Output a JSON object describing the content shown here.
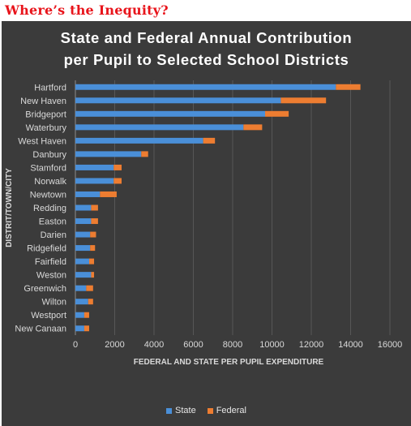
{
  "banner": {
    "text": "Where’s the Inequity?"
  },
  "chart_data": {
    "type": "bar",
    "orientation": "horizontal",
    "stacked": true,
    "title": [
      "State and Federal Annual Contribution",
      "per Pupil to Selected School Districts"
    ],
    "xlabel": "FEDERAL AND STATE PER PUPIL EXPENDITURE",
    "ylabel": "DISTRIT/TOWN/CITY",
    "xlim": [
      0,
      16000
    ],
    "xticks": [
      0,
      2000,
      4000,
      6000,
      8000,
      10000,
      12000,
      14000,
      16000
    ],
    "categories": [
      "Hartford",
      "New Haven",
      "Bridgeport",
      "Waterbury",
      "West Haven",
      "Danbury",
      "Stamford",
      "Norwalk",
      "Newtown",
      "Redding",
      "Easton",
      "Darien",
      "Ridgefield",
      "Fairfield",
      "Weston",
      "Greenwich",
      "Wilton",
      "Westport",
      "New Canaan"
    ],
    "series": [
      {
        "name": "State",
        "color": "#4a8fd8",
        "values": [
          13250,
          10450,
          9650,
          8550,
          6500,
          3350,
          1950,
          1950,
          1250,
          800,
          800,
          750,
          750,
          700,
          800,
          550,
          650,
          450,
          450
        ]
      },
      {
        "name": "Federal",
        "color": "#ed7d31",
        "values": [
          1250,
          2300,
          1200,
          950,
          600,
          350,
          400,
          400,
          850,
          350,
          350,
          300,
          250,
          250,
          150,
          350,
          250,
          250,
          250
        ]
      }
    ],
    "grid": true,
    "legend": "bottom"
  }
}
